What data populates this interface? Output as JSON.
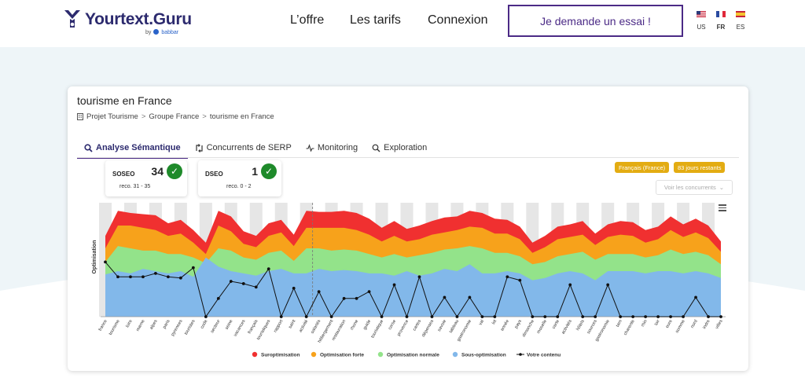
{
  "brand": {
    "name": "Yourtext.Guru",
    "by": "by",
    "partner": "babbar"
  },
  "nav": {
    "items": [
      "L’offre",
      "Les tarifs",
      "Connexion"
    ],
    "cta": "Je demande un essai !"
  },
  "languages": [
    {
      "code": "US",
      "active": false
    },
    {
      "code": "FR",
      "active": true
    },
    {
      "code": "ES",
      "active": false
    }
  ],
  "card": {
    "title": "tourisme en France",
    "breadcrumb": [
      "Projet Tourisme",
      "Groupe France",
      "tourisme en France"
    ],
    "tabs": [
      {
        "label": "Analyse Sémantique",
        "icon": "search-icon",
        "active": true
      },
      {
        "label": "Concurrents de SERP",
        "icon": "swap-icon",
        "active": false
      },
      {
        "label": "Monitoring",
        "icon": "pulse-icon",
        "active": false
      },
      {
        "label": "Exploration",
        "icon": "magnifier-icon",
        "active": false
      }
    ],
    "scores": [
      {
        "label": "SOSEO",
        "value": "34",
        "reco": "reco. 31 - 35"
      },
      {
        "label": "DSEO",
        "value": "1",
        "reco": "reco. 0 - 2"
      }
    ],
    "badges": [
      "Français (France)",
      "83 jours restants"
    ],
    "competitors_button": "Voir les concurrents"
  },
  "chart_data": {
    "type": "area",
    "ylabel": "Optimisation",
    "legend_position": "bottom",
    "categories": [
      "france",
      "tourisme",
      "loire",
      "marne",
      "alpes",
      "paris",
      "pyrenees",
      "touristes",
      "code",
      "secteur",
      "seine",
      "vacances",
      "français",
      "touristiques",
      "rapport",
      "saint",
      "activité",
      "salariés",
      "hébergement",
      "restauration",
      "rhone",
      "guide",
      "touristique",
      "corse",
      "provence",
      "cartes",
      "dépenses",
      "savoie",
      "tableau",
      "gastronomie",
      "val",
      "lot",
      "année",
      "pays",
      "dimanche",
      "moselle",
      "carte",
      "activités",
      "hôtels",
      "sources",
      "gastronomie",
      "tarn",
      "charente",
      "rhin",
      "loir",
      "eure",
      "somme",
      "nord",
      "indre",
      "villes"
    ],
    "series": [
      {
        "name": "Suroptimisation",
        "color": "#f03030",
        "values": [
          71,
          93,
          91,
          90,
          89,
          82,
          85,
          76,
          65,
          93,
          88,
          75,
          71,
          82,
          85,
          72,
          93,
          92,
          92,
          93,
          91,
          86,
          78,
          84,
          77,
          80,
          84,
          87,
          88,
          93,
          91,
          86,
          85,
          79,
          65,
          71,
          79,
          81,
          84,
          73,
          81,
          84,
          83,
          76,
          79,
          88,
          81,
          86,
          80,
          66
        ]
      },
      {
        "name": "Optimisation forte",
        "color": "#f7a21b",
        "values": [
          60,
          80,
          80,
          78,
          76,
          71,
          73,
          65,
          55,
          80,
          75,
          64,
          61,
          71,
          74,
          62,
          78,
          78,
          78,
          78,
          76,
          72,
          66,
          71,
          66,
          68,
          72,
          74,
          76,
          79,
          78,
          73,
          73,
          68,
          56,
          61,
          68,
          70,
          72,
          63,
          70,
          72,
          71,
          65,
          68,
          76,
          70,
          74,
          69,
          57
        ]
      },
      {
        "name": "Optimisation normale",
        "color": "#93e38a",
        "values": [
          48,
          62,
          60,
          58,
          58,
          55,
          55,
          52,
          47,
          60,
          58,
          52,
          50,
          56,
          58,
          49,
          60,
          60,
          58,
          59,
          58,
          55,
          52,
          55,
          52,
          54,
          56,
          59,
          60,
          62,
          60,
          56,
          56,
          53,
          46,
          48,
          53,
          55,
          57,
          50,
          55,
          55,
          55,
          52,
          54,
          59,
          55,
          57,
          54,
          46
        ]
      },
      {
        "name": "Sous-optimisation",
        "color": "#82b8ea",
        "values": [
          37,
          40,
          38,
          42,
          40,
          38,
          40,
          35,
          52,
          44,
          40,
          38,
          36,
          40,
          42,
          38,
          38,
          42,
          40,
          41,
          40,
          38,
          38,
          36,
          40,
          36,
          38,
          42,
          40,
          46,
          38,
          38,
          40,
          38,
          32,
          34,
          38,
          40,
          38,
          32,
          40,
          40,
          40,
          38,
          40,
          40,
          38,
          40,
          38,
          34
        ]
      },
      {
        "name": "Votre contenu",
        "color": "#111111",
        "values": [
          48,
          35,
          35,
          35,
          38,
          35,
          34,
          43,
          0,
          16,
          31,
          29,
          26,
          42,
          0,
          25,
          0,
          22,
          0,
          16,
          16,
          22,
          0,
          28,
          0,
          35,
          0,
          17,
          0,
          17,
          0,
          0,
          35,
          32,
          0,
          0,
          0,
          28,
          0,
          0,
          28,
          0,
          0,
          0,
          0,
          0,
          0,
          17,
          0,
          0
        ]
      }
    ]
  }
}
